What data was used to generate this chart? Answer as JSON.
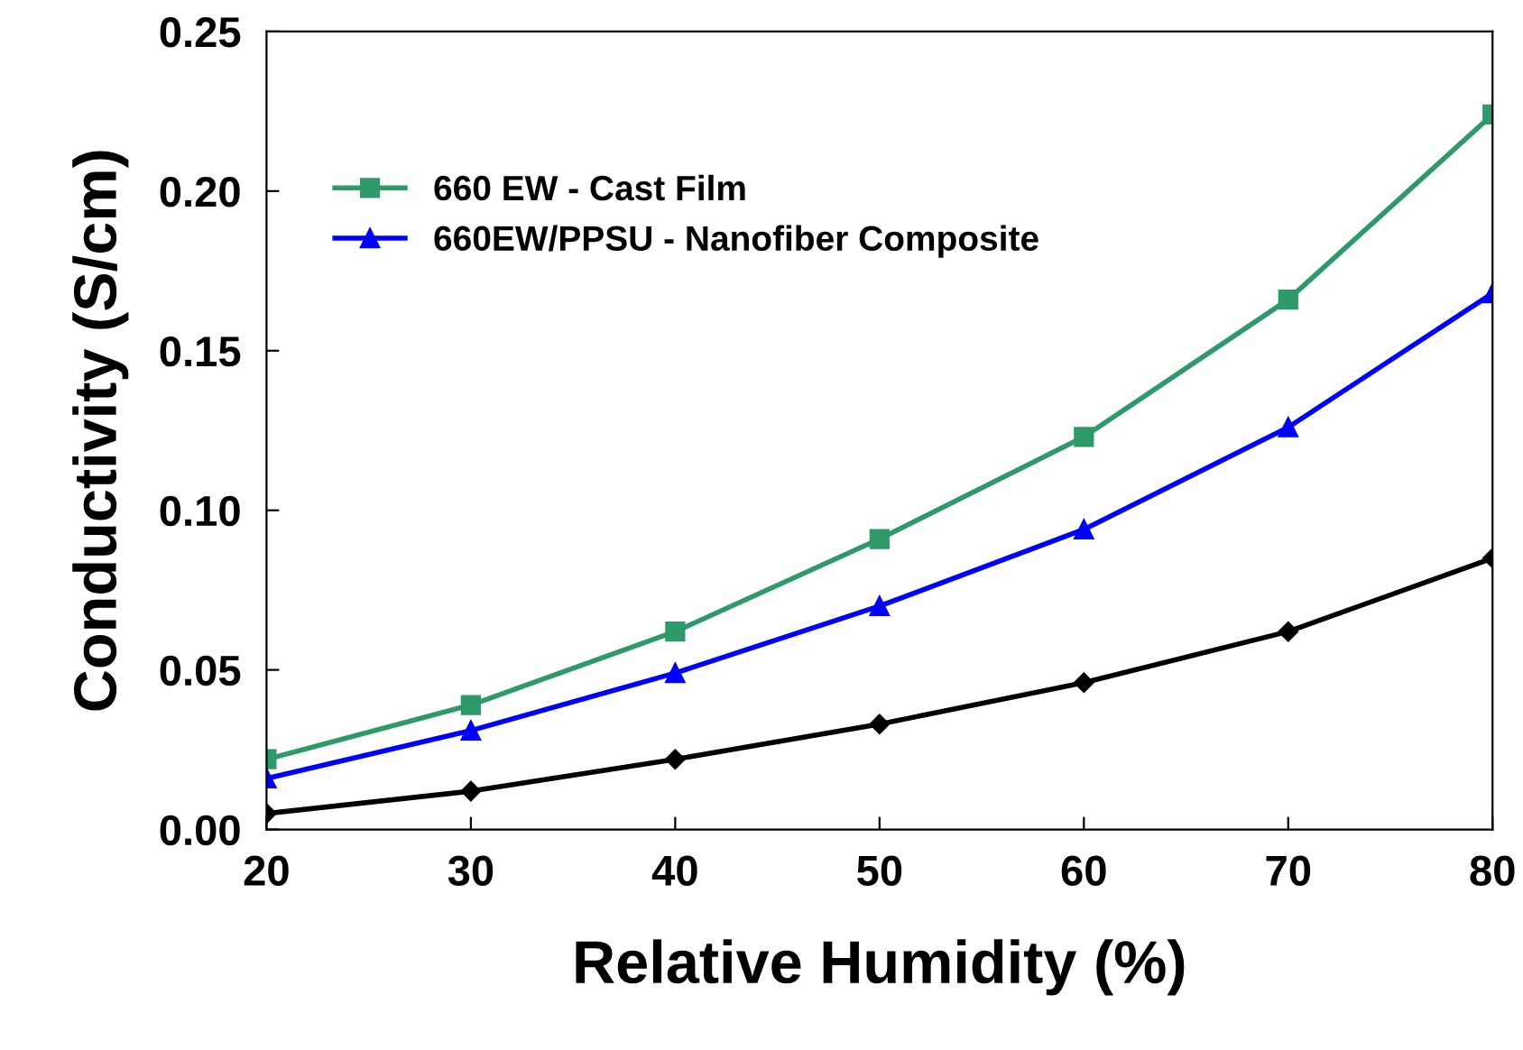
{
  "chart_data": {
    "type": "line",
    "xlabel": "Relative Humidity (%)",
    "ylabel": "Conductivity (S/cm)",
    "x": [
      20,
      30,
      40,
      50,
      60,
      70,
      80
    ],
    "series": [
      {
        "color": "#000000",
        "marker": "diamond",
        "values": [
          0.005,
          0.012,
          0.022,
          0.033,
          0.046,
          0.062,
          0.085
        ]
      },
      {
        "name": "660 EW - Cast Film",
        "color": "#2e9a6a",
        "marker": "square",
        "values": [
          0.022,
          0.039,
          0.062,
          0.091,
          0.123,
          0.166,
          0.224
        ]
      },
      {
        "name": "660EW/PPSU - Nanofiber Composite",
        "color": "#0000ff",
        "marker": "triangle",
        "values": [
          0.016,
          0.031,
          0.049,
          0.07,
          0.094,
          0.126,
          0.168
        ]
      }
    ],
    "xlim": [
      20,
      80
    ],
    "xticks": [
      20,
      30,
      40,
      50,
      60,
      70,
      80
    ],
    "ylim": [
      0,
      0.25
    ],
    "yticks": [
      {
        "value": 0,
        "label": "0.00"
      },
      {
        "value": 0.05,
        "label": "0.05"
      },
      {
        "value": 0.1,
        "label": "0.10"
      },
      {
        "value": 0.15,
        "label": "0.15"
      },
      {
        "value": 0.2,
        "label": "0.20"
      },
      {
        "value": 0.25,
        "label": "0.25"
      }
    ],
    "grid": false,
    "legend": "top left"
  }
}
